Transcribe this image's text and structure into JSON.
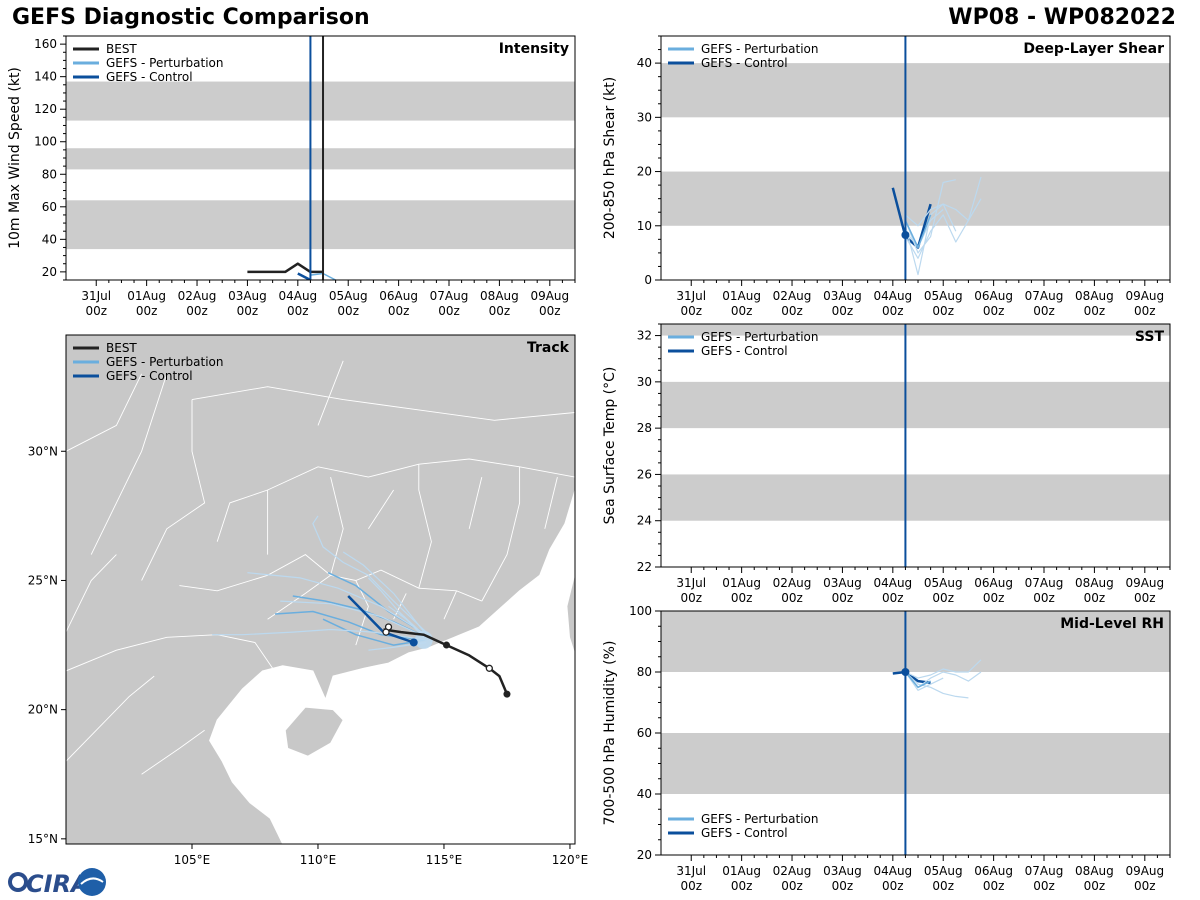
{
  "header": {
    "left_title": "GEFS Diagnostic Comparison",
    "right_title": "WP08 - WP082022"
  },
  "logo": {
    "text": "CIRA"
  },
  "colors": {
    "best": "#222222",
    "perturbation": "#6aaede",
    "perturbation_faint": "#bcd9ef",
    "control": "#0b4f9c",
    "band": "#cccccc",
    "land": "#c8c8c8",
    "ocean": "#ffffff"
  },
  "time_axis": {
    "labels": [
      "31Jul\n00z",
      "01Aug\n00z",
      "02Aug\n00z",
      "03Aug\n00z",
      "04Aug\n00z",
      "05Aug\n00z",
      "06Aug\n00z",
      "07Aug\n00z",
      "08Aug\n00z",
      "09Aug\n00z"
    ],
    "range_days": [
      -0.6,
      9.5
    ]
  },
  "chart_data": [
    {
      "id": "intensity",
      "type": "line",
      "title": "Intensity",
      "ylabel": "10m Max Wind Speed (kt)",
      "ylim": [
        15,
        165
      ],
      "yticks": [
        20,
        40,
        60,
        80,
        100,
        120,
        140,
        160
      ],
      "bands": [
        [
          34,
          64
        ],
        [
          83,
          96
        ],
        [
          113,
          137
        ]
      ],
      "vlines": [
        {
          "x": 4.25,
          "series": "control"
        },
        {
          "x": 4.5,
          "series": "best"
        }
      ],
      "legend": [
        "BEST",
        "GEFS - Perturbation",
        "GEFS - Control"
      ],
      "series": [
        {
          "name": "BEST",
          "style": "best",
          "x": [
            3.0,
            3.25,
            3.5,
            3.75,
            4.0,
            4.25,
            4.5
          ],
          "y": [
            20,
            20,
            20,
            20,
            25,
            20,
            20
          ]
        },
        {
          "name": "GEFS - Control",
          "style": "control",
          "x": [
            4.0,
            4.25
          ],
          "y": [
            19,
            15
          ]
        },
        {
          "name": "GEFS - Perturbation",
          "style": "perturbation",
          "x": [
            4.25,
            4.5,
            4.75
          ],
          "y": [
            18,
            19,
            15
          ]
        }
      ]
    },
    {
      "id": "shear",
      "type": "line",
      "title": "Deep-Layer Shear",
      "ylabel": "200-850 hPa Shear (kt)",
      "ylim": [
        0,
        45
      ],
      "yticks": [
        0,
        10,
        20,
        30,
        40
      ],
      "bands": [
        [
          10,
          20
        ],
        [
          30,
          40
        ]
      ],
      "vlines": [
        {
          "x": 4.25,
          "series": "control"
        }
      ],
      "legend": [
        "GEFS - Perturbation",
        "GEFS - Control"
      ],
      "series": [
        {
          "name": "GEFS - Control",
          "style": "control",
          "x": [
            4.0,
            4.25,
            4.5,
            4.75
          ],
          "y": [
            17,
            8,
            6,
            14
          ],
          "marker_x": 4.25,
          "marker_y": 8.3
        },
        {
          "name": "p1",
          "style": "faint",
          "x": [
            4.25,
            4.5,
            4.75,
            5.0,
            5.25
          ],
          "y": [
            11,
            5,
            8,
            18,
            18.5
          ]
        },
        {
          "name": "p2",
          "style": "faint",
          "x": [
            4.25,
            4.5,
            4.75,
            5.0,
            5.25
          ],
          "y": [
            12,
            10,
            13,
            14,
            9
          ]
        },
        {
          "name": "p3",
          "style": "faint",
          "x": [
            4.25,
            4.5,
            4.75,
            5.0,
            5.25,
            5.5,
            5.75
          ],
          "y": [
            8,
            4,
            9,
            12,
            7,
            11,
            15
          ]
        },
        {
          "name": "p4",
          "style": "faint",
          "x": [
            4.25,
            4.5,
            4.75,
            5.0,
            5.25,
            5.5,
            5.75
          ],
          "y": [
            10,
            1,
            12,
            14,
            13,
            11,
            19
          ]
        },
        {
          "name": "p5",
          "style": "faint",
          "x": [
            4.25,
            4.5,
            4.75,
            5.0
          ],
          "y": [
            9,
            6,
            11,
            13
          ]
        },
        {
          "name": "p6",
          "style": "perturbation",
          "x": [
            4.25,
            4.5,
            4.75
          ],
          "y": [
            11,
            6,
            12
          ]
        }
      ]
    },
    {
      "id": "sst",
      "type": "line",
      "title": "SST",
      "ylabel": "Sea Surface Temp (°C)",
      "ylim": [
        22,
        32.5
      ],
      "yticks": [
        22,
        24,
        26,
        28,
        30,
        32
      ],
      "bands": [
        [
          24,
          26
        ],
        [
          28,
          30
        ],
        [
          32,
          32.5
        ]
      ],
      "vlines": [
        {
          "x": 4.25,
          "series": "control"
        }
      ],
      "legend": [
        "GEFS - Perturbation",
        "GEFS - Control"
      ],
      "series": []
    },
    {
      "id": "rh",
      "type": "line",
      "title": "Mid-Level RH",
      "ylabel": "700-500 hPa Humidity (%)",
      "ylim": [
        20,
        100
      ],
      "yticks": [
        20,
        40,
        60,
        80,
        100
      ],
      "bands": [
        [
          40,
          60
        ],
        [
          80,
          100
        ]
      ],
      "vlines": [
        {
          "x": 4.25,
          "series": "control"
        }
      ],
      "legend": [
        "GEFS - Perturbation",
        "GEFS - Control"
      ],
      "series": [
        {
          "name": "GEFS - Control",
          "style": "control",
          "x": [
            4.0,
            4.25,
            4.5,
            4.75
          ],
          "y": [
            79.5,
            80,
            77,
            76.5
          ],
          "marker_x": 4.25,
          "marker_y": 80
        },
        {
          "name": "p1",
          "style": "faint",
          "x": [
            4.25,
            4.5,
            4.75,
            5.0,
            5.25,
            5.5,
            5.75
          ],
          "y": [
            80,
            78,
            79,
            81,
            80,
            80,
            84
          ]
        },
        {
          "name": "p2",
          "style": "faint",
          "x": [
            4.25,
            4.5,
            4.75,
            5.0,
            5.25,
            5.5
          ],
          "y": [
            80,
            76,
            75,
            73,
            72,
            71.5
          ]
        },
        {
          "name": "p3",
          "style": "faint",
          "x": [
            4.25,
            4.5,
            4.75,
            5.0,
            5.25,
            5.5,
            5.75
          ],
          "y": [
            80,
            75,
            78,
            80,
            79,
            77,
            80
          ]
        },
        {
          "name": "p4",
          "style": "faint",
          "x": [
            4.25,
            4.5,
            4.75,
            5.0
          ],
          "y": [
            80,
            74,
            76,
            78
          ]
        },
        {
          "name": "p5",
          "style": "perturbation",
          "x": [
            4.25,
            4.5,
            4.75
          ],
          "y": [
            80,
            75,
            77
          ]
        }
      ]
    },
    {
      "id": "track",
      "type": "scatter",
      "title": "Track",
      "xlim": [
        100,
        120.2
      ],
      "ylim": [
        14.8,
        34.5
      ],
      "xticks": [
        105,
        110,
        115,
        120
      ],
      "xtick_labels": [
        "105°E",
        "110°E",
        "115°E",
        "120°E"
      ],
      "yticks": [
        15,
        20,
        25,
        30
      ],
      "ytick_labels": [
        "15°N",
        "20°N",
        "25°N",
        "30°N"
      ],
      "legend": [
        "BEST",
        "GEFS - Perturbation",
        "GEFS - Control"
      ],
      "best_track": {
        "lon": [
          117.5,
          117.2,
          116.8,
          116.0,
          115.1,
          114.2,
          113.3,
          112.6
        ],
        "lat": [
          20.6,
          21.3,
          21.6,
          22.1,
          22.5,
          22.9,
          23.0,
          23.1
        ],
        "filled": [
          [
            117.5,
            20.6
          ],
          [
            115.1,
            22.5
          ]
        ],
        "open": [
          [
            116.8,
            21.6
          ],
          [
            112.8,
            23.2
          ]
        ]
      },
      "control_track": {
        "lon": [
          113.8,
          113.2,
          112.6,
          112.0,
          111.2
        ],
        "lat": [
          22.6,
          22.8,
          23.0,
          23.6,
          24.4
        ],
        "filled": [
          [
            113.8,
            22.6
          ]
        ],
        "open": [
          [
            112.7,
            23.0
          ]
        ]
      },
      "perturbation_tracks": [
        {
          "style": "perturbation",
          "lon": [
            114.3,
            113.0,
            111.6,
            110.3,
            109.0
          ],
          "lat": [
            22.8,
            23.4,
            23.9,
            24.2,
            24.4
          ]
        },
        {
          "style": "perturbation",
          "lon": [
            114.3,
            112.8,
            111.5,
            110.4
          ],
          "lat": [
            22.9,
            23.8,
            24.8,
            25.3
          ]
        },
        {
          "style": "perturbation",
          "lon": [
            114.2,
            112.5,
            111.2,
            109.8,
            108.3
          ],
          "lat": [
            22.7,
            22.9,
            23.4,
            23.8,
            23.7
          ]
        },
        {
          "style": "perturbation",
          "lon": [
            114.3,
            113.0,
            111.5,
            110.2
          ],
          "lat": [
            22.7,
            22.5,
            22.9,
            23.5
          ]
        },
        {
          "style": "faint",
          "lon": [
            114.3,
            112.5,
            110.8,
            109.3,
            107.2
          ],
          "lat": [
            22.9,
            24.0,
            24.7,
            25.1,
            25.3
          ]
        },
        {
          "style": "faint",
          "lon": [
            114.3,
            112.2,
            110.5,
            109.0,
            107.0,
            105.8
          ],
          "lat": [
            22.7,
            23.0,
            23.1,
            23.0,
            22.9,
            22.9
          ]
        },
        {
          "style": "faint",
          "lon": [
            114.4,
            113.0,
            112.0,
            111.0,
            110.2,
            109.8,
            110.0
          ],
          "lat": [
            22.9,
            24.2,
            25.2,
            25.7,
            26.3,
            27.2,
            27.5
          ]
        },
        {
          "style": "faint",
          "lon": [
            114.3,
            113.2,
            112.5,
            112.0
          ],
          "lat": [
            22.8,
            23.8,
            24.6,
            25.1
          ]
        },
        {
          "style": "faint",
          "lon": [
            114.3,
            112.9,
            112.0
          ],
          "lat": [
            22.6,
            22.4,
            22.3
          ]
        },
        {
          "style": "faint",
          "lon": [
            114.3,
            112.5,
            110.5,
            108.5
          ],
          "lat": [
            22.8,
            23.6,
            24.1,
            24.2
          ]
        },
        {
          "style": "faint",
          "lon": [
            114.3,
            113.0,
            111.8,
            111.0
          ],
          "lat": [
            22.9,
            24.5,
            25.6,
            26.1
          ]
        },
        {
          "style": "faint",
          "lon": [
            114.2,
            113.5,
            112.8
          ],
          "lat": [
            22.8,
            23.5,
            24.0
          ]
        }
      ]
    }
  ]
}
